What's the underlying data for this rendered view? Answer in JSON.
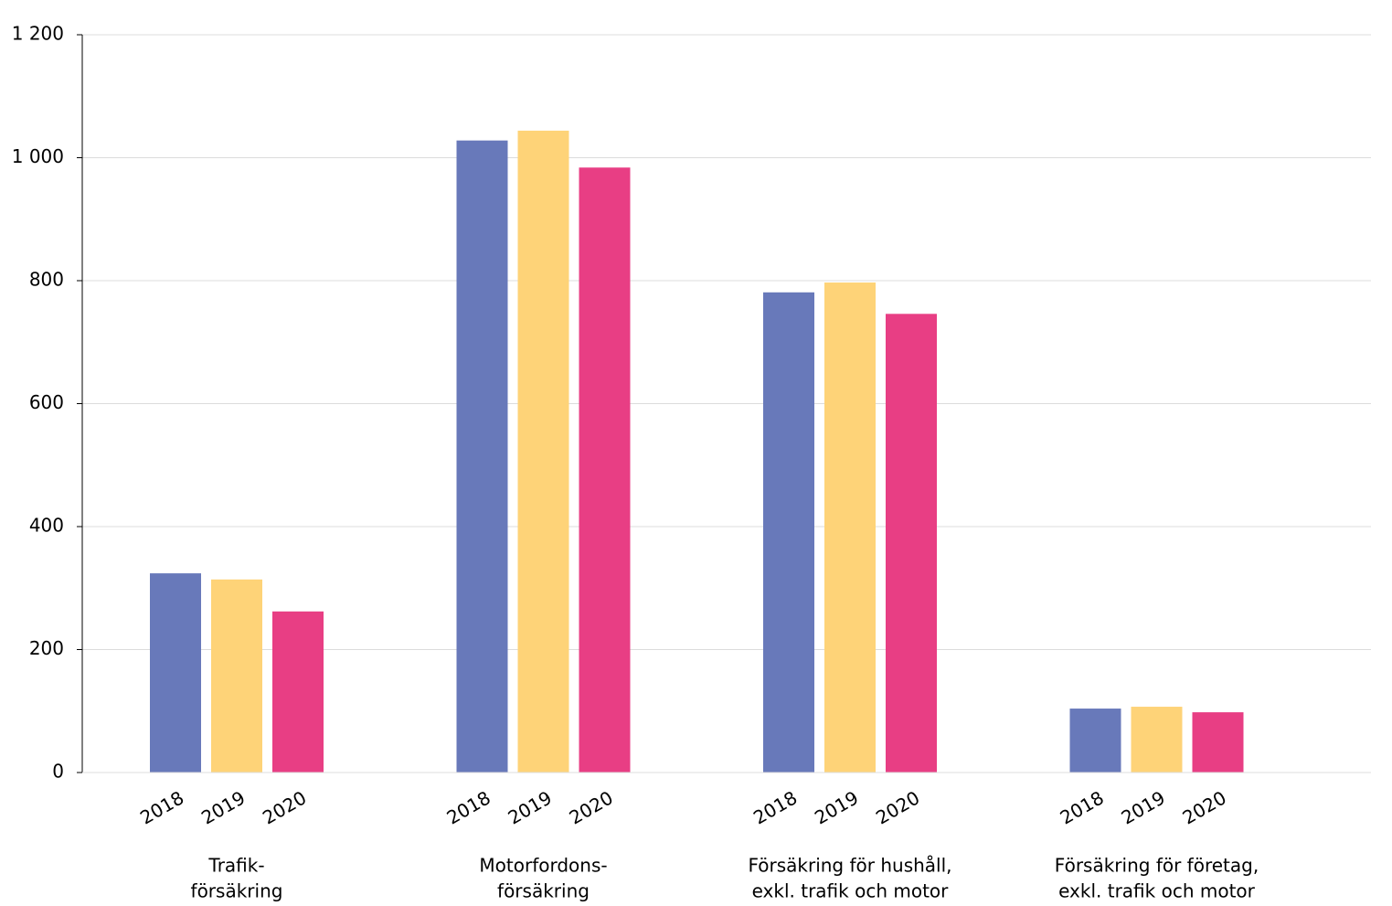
{
  "chart_data": {
    "type": "bar",
    "categories": [
      [
        "Trafik-",
        "försäkring"
      ],
      [
        "Motorfordons-",
        "försäkring"
      ],
      [
        "Försäkring för hushåll,",
        "exkl. trafik och motor"
      ],
      [
        "Försäkring för företag,",
        "exkl. trafik och motor"
      ]
    ],
    "series": [
      {
        "name": "2018",
        "color": "#6879ba",
        "values": [
          324,
          1028,
          781,
          104
        ]
      },
      {
        "name": "2019",
        "color": "#fed378",
        "values": [
          314,
          1044,
          797,
          107
        ]
      },
      {
        "name": "2020",
        "color": "#e83e84",
        "values": [
          262,
          984,
          746,
          98
        ]
      }
    ],
    "ylim": [
      0,
      1200
    ],
    "yticks": [
      0,
      200,
      400,
      600,
      800,
      {
        "value": 1000,
        "label": "1 000"
      },
      {
        "value": 1200,
        "label": "1 200"
      }
    ],
    "grid": true
  }
}
